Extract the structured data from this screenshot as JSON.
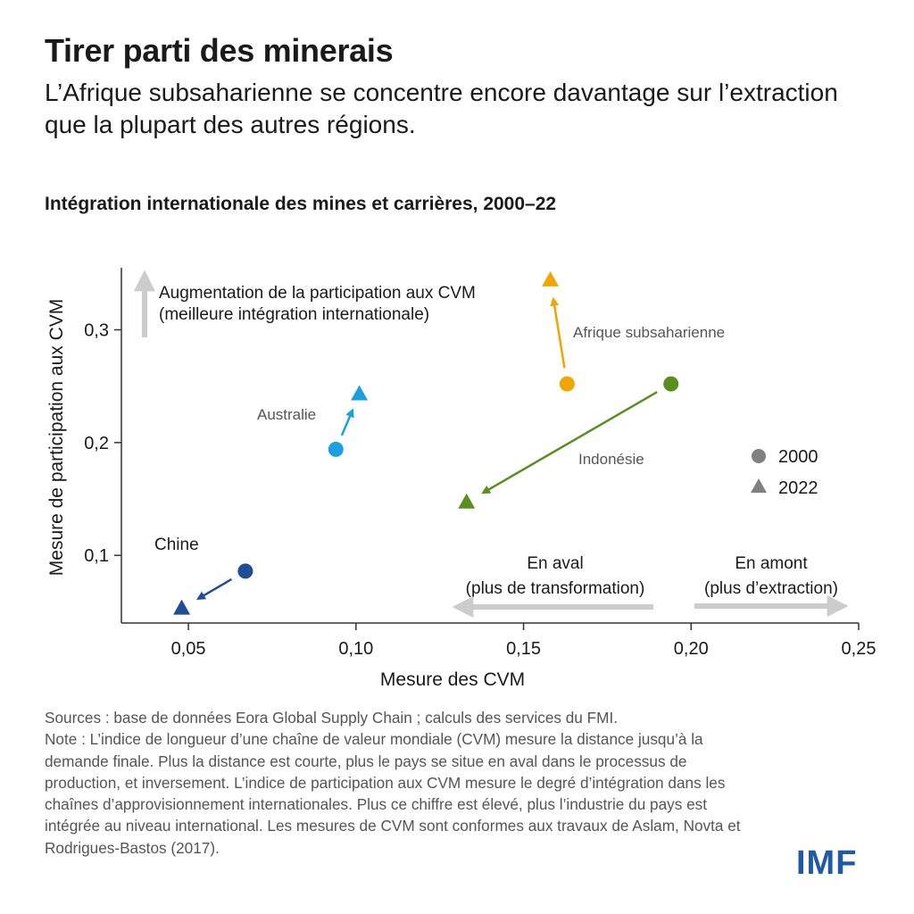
{
  "header": {
    "title": "Tirer parti des minerais",
    "subtitle": "L’Afrique subsaharienne se concentre encore davantage sur l’extraction que la plupart des autres régions."
  },
  "chart_data": {
    "type": "scatter",
    "title": "Intégration internationale des mines et carrières, 2000–22",
    "xlabel": "Mesure des CVM",
    "ylabel": "Mesure de participation aux CVM",
    "xlim": [
      0.03,
      0.25
    ],
    "ylim": [
      0.04,
      0.355
    ],
    "x_ticks": [
      0.05,
      0.1,
      0.15,
      0.2,
      0.25
    ],
    "x_tick_labels": [
      "0,05",
      "0,10",
      "0,15",
      "0,20",
      "0,25"
    ],
    "y_ticks": [
      0.1,
      0.2,
      0.3
    ],
    "y_tick_labels": [
      "0,1",
      "0,2",
      "0,3"
    ],
    "grid": false,
    "legend": {
      "placement": "right",
      "entries": [
        {
          "label": "2000",
          "marker": "circle"
        },
        {
          "label": "2022",
          "marker": "triangle"
        }
      ]
    },
    "series": [
      {
        "name": "Chine",
        "color": "#1f4e96",
        "points": [
          {
            "year": "2000",
            "x": 0.067,
            "y": 0.086
          },
          {
            "year": "2022",
            "x": 0.048,
            "y": 0.053
          }
        ]
      },
      {
        "name": "Australie",
        "color": "#1aa0dc",
        "points": [
          {
            "year": "2000",
            "x": 0.094,
            "y": 0.194
          },
          {
            "year": "2022",
            "x": 0.101,
            "y": 0.243
          }
        ]
      },
      {
        "name": "Afrique subsaharienne",
        "color": "#f0a500",
        "points": [
          {
            "year": "2000",
            "x": 0.163,
            "y": 0.252
          },
          {
            "year": "2022",
            "x": 0.158,
            "y": 0.344
          }
        ]
      },
      {
        "name": "Indonésie",
        "color": "#5a8f1e",
        "points": [
          {
            "year": "2000",
            "x": 0.194,
            "y": 0.252
          },
          {
            "year": "2022",
            "x": 0.133,
            "y": 0.147
          }
        ]
      }
    ],
    "annotations": {
      "up_line1": "Augmentation de la participation aux CVM",
      "up_line2": "(meilleure intégration internationale)",
      "downstream_line1": "En aval",
      "downstream_line2": "(plus de transformation)",
      "upstream_line1": "En amont",
      "upstream_line2": "(plus d’extraction)"
    },
    "colors": {
      "axis": "#333333",
      "label_gray": "#555555",
      "guide_arrow": "#cccccc"
    }
  },
  "footnote": {
    "sources": "Sources : base de données Eora Global Supply Chain ; calculs des services du FMI.",
    "note": "Note : L’indice de longueur d’une chaîne de valeur mondiale (CVM) mesure la distance jusqu’à la demande finale. Plus la distance est courte, plus le pays se situe en aval dans le processus de production, et inversement. L’indice de participation aux CVM mesure le degré d’intégration dans les chaînes d’approvisionnement internationales. Plus ce chiffre est élevé, plus l’industrie du pays est intégrée au niveau international. Les mesures de CVM sont conformes aux travaux de Aslam, Novta et Rodrigues-Bastos (2017)."
  },
  "logo": {
    "text": "IMF",
    "color": "#1f5aa6"
  }
}
